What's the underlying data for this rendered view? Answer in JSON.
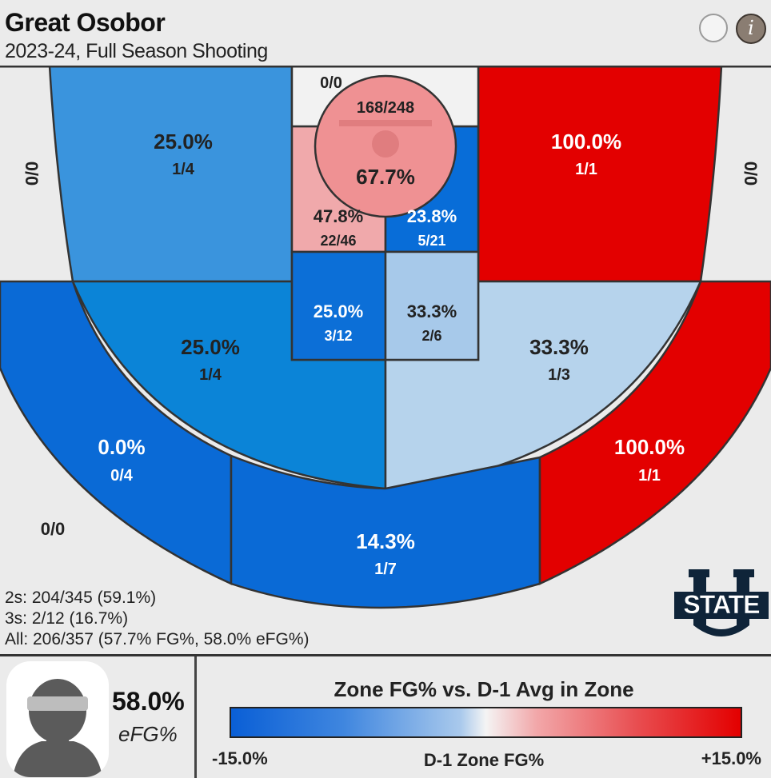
{
  "header": {
    "player_name": "Great Osobor",
    "season": "2023-24, Full Season Shooting",
    "info_icon": "info-icon",
    "info_symbol": "i"
  },
  "colors": {
    "scale_min": "#0a5fd6",
    "scale_neutral": "#f4f4f4",
    "scale_max": "#e30000",
    "court_background": "#ebebeb",
    "court_lines": "#333333"
  },
  "chart_data": {
    "type": "heatmap",
    "title": "",
    "metric": "Zone FG% vs. D-1 Avg in Zone",
    "color_scale_range": [
      -15.0,
      15.0
    ],
    "zones": [
      {
        "id": "rim",
        "fg_pct": "67.7%",
        "made_attempts": "168/248",
        "made": 168,
        "attempts": 248,
        "color": "#ef9193"
      },
      {
        "id": "left-baseline-paint",
        "fg_pct": "47.8%",
        "made_attempts": "22/46",
        "made": 22,
        "attempts": 46,
        "color": "#f0a9ab"
      },
      {
        "id": "right-baseline-paint",
        "fg_pct": "23.8%",
        "made_attempts": "5/21",
        "made": 5,
        "attempts": 21,
        "color": "#086dd8"
      },
      {
        "id": "left-upper-paint",
        "fg_pct": "25.0%",
        "made_attempts": "3/12",
        "made": 3,
        "attempts": 12,
        "color": "#0c6fd7"
      },
      {
        "id": "right-upper-paint",
        "fg_pct": "33.3%",
        "made_attempts": "2/6",
        "made": 2,
        "attempts": 6,
        "color": "#a7c9ea"
      },
      {
        "id": "left-baseline-mid",
        "fg_pct": "25.0%",
        "made_attempts": "1/4",
        "made": 1,
        "attempts": 4,
        "color": "#3a94dd"
      },
      {
        "id": "right-baseline-mid",
        "fg_pct": "100.0%",
        "made_attempts": "1/1",
        "made": 1,
        "attempts": 1,
        "color": "#e30000"
      },
      {
        "id": "left-wing-mid",
        "fg_pct": "25.0%",
        "made_attempts": "1/4",
        "made": 1,
        "attempts": 4,
        "color": "#0b84d7"
      },
      {
        "id": "right-wing-mid",
        "fg_pct": "33.3%",
        "made_attempts": "1/3",
        "made": 1,
        "attempts": 3,
        "color": "#b6d3ec"
      },
      {
        "id": "left-wing-three",
        "fg_pct": "0.0%",
        "made_attempts": "0/4",
        "made": 0,
        "attempts": 4,
        "color": "#0a6ad6"
      },
      {
        "id": "top-key-three",
        "fg_pct": "14.3%",
        "made_attempts": "1/7",
        "made": 1,
        "attempts": 7,
        "color": "#0a6ad6"
      },
      {
        "id": "right-wing-three",
        "fg_pct": "100.0%",
        "made_attempts": "1/1",
        "made": 1,
        "attempts": 1,
        "color": "#e30000"
      }
    ],
    "unlabeled_zones": [
      {
        "id": "restricted-backcourt",
        "made_attempts": "0/0"
      },
      {
        "id": "left-corner-three",
        "made_attempts": "0/0"
      },
      {
        "id": "right-corner-three",
        "made_attempts": "0/0"
      },
      {
        "id": "left-deep-three",
        "made_attempts": "0/0"
      }
    ]
  },
  "totals": {
    "twos": "2s: 204/345 (59.1%)",
    "threes": "3s: 2/12 (16.7%)",
    "all": "All: 206/357 (57.7% FG%, 58.0% eFG%)"
  },
  "logo": {
    "text": "STATE",
    "letter": "U"
  },
  "footer": {
    "efg_value": "58.0%",
    "efg_label": "eFG%",
    "avatar_icon": "player-silhouette-icon",
    "legend_title": "Zone FG% vs. D-1 Avg in Zone",
    "legend_min": "-15.0%",
    "legend_mid": "D-1 Zone FG%",
    "legend_max": "+15.0%"
  }
}
